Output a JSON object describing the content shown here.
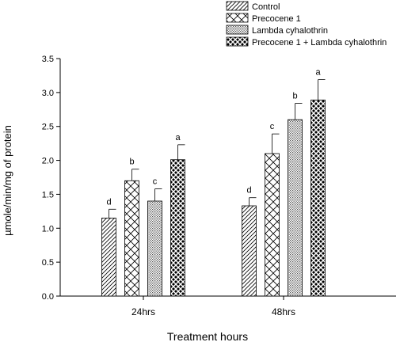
{
  "chart_data": {
    "type": "bar",
    "title": "",
    "xlabel": "Treatment hours",
    "ylabel": "µmole/min/mg of protein",
    "categories": [
      "24hrs",
      "48hrs"
    ],
    "ylim": [
      0,
      3.5
    ],
    "yticks": [
      "0.0",
      "0.5",
      "1.0",
      "1.5",
      "2.0",
      "2.5",
      "3.0",
      "3.5"
    ],
    "grid": false,
    "legend_position": "top-right",
    "series": [
      {
        "name": "Control",
        "pattern": "diagonal-hatch",
        "values": [
          1.15,
          1.33
        ],
        "errors": [
          0.13,
          0.12
        ],
        "labels": [
          "d",
          "d"
        ]
      },
      {
        "name": "Precocene 1",
        "pattern": "cross-hatch",
        "values": [
          1.7,
          2.1
        ],
        "errors": [
          0.17,
          0.29
        ],
        "labels": [
          "b",
          "c"
        ]
      },
      {
        "name": "Lambda cyhalothrin",
        "pattern": "fine-dots",
        "values": [
          1.4,
          2.6
        ],
        "errors": [
          0.18,
          0.24
        ],
        "labels": [
          "c",
          "b"
        ]
      },
      {
        "name": "Precocene 1 + Lambda cyhalothrin",
        "pattern": "diamond-dots",
        "values": [
          2.01,
          2.89
        ],
        "errors": [
          0.22,
          0.3
        ],
        "labels": [
          "a",
          "a"
        ]
      }
    ]
  }
}
